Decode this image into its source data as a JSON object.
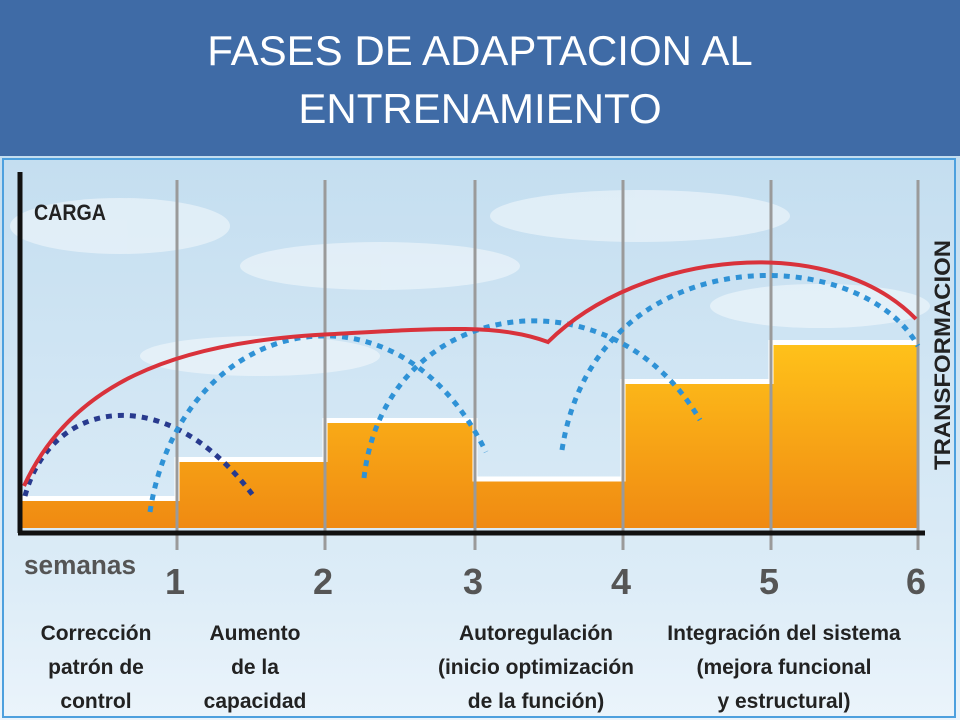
{
  "header": {
    "title_line1": "FASES DE ADAPTACION AL",
    "title_line2": "ENTRENAMIENTO",
    "background": "#3f6ba6"
  },
  "diagram": {
    "y_axis_label": "CARGA",
    "x_axis_label": "semanas",
    "right_label": "TRANSFORMACION",
    "week_numbers": [
      "1",
      "2",
      "3",
      "4",
      "5",
      "6"
    ],
    "phases": [
      {
        "lines": [
          "Corrección",
          "patrón de",
          "control"
        ]
      },
      {
        "lines": [
          "Aumento",
          "de la",
          "capacidad"
        ]
      },
      {
        "lines": [
          "Autoregulación",
          "(inicio optimización",
          "de la función)"
        ]
      },
      {
        "lines": [
          "Integración del sistema",
          "(mejora funcional",
          "y estructural)"
        ]
      }
    ],
    "load_levels": [
      1,
      3,
      5,
      2,
      7,
      9
    ],
    "colors": {
      "sky_top": "#c4def0",
      "load_fill_light": "#ffc21a",
      "load_fill_dark": "#f08a12",
      "transformation_curve": "#d9323b",
      "phase_arc_dark": "#283a8e",
      "phase_arc_light": "#2f92d6",
      "week_line": "#9a9a9a",
      "axis": "#111111",
      "label_text": "#222222"
    }
  }
}
